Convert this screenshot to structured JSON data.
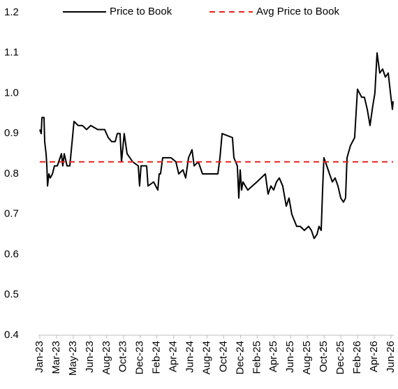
{
  "chart_data": {
    "type": "line",
    "series": [
      {
        "name": "Price to Book",
        "color": "#000000",
        "dashed": false,
        "x": [
          2023.0,
          2023.014,
          2023.021,
          2023.041,
          2023.048,
          2023.062,
          2023.069,
          2023.076,
          2023.089,
          2023.103,
          2023.124,
          2023.144,
          2023.172,
          2023.213,
          2023.226,
          2023.24,
          2023.268,
          2023.295,
          2023.336,
          2023.377,
          2023.419,
          2023.46,
          2023.501,
          2023.57,
          2023.638,
          2023.673,
          2023.707,
          2023.741,
          2023.762,
          2023.789,
          2023.803,
          2023.83,
          2023.858,
          2023.913,
          2023.968,
          2023.981,
          2023.995,
          2024.05,
          2024.064,
          2024.119,
          2024.16,
          2024.174,
          2024.187,
          2024.208,
          2024.29,
          2024.338,
          2024.366,
          2024.407,
          2024.434,
          2024.462,
          2024.496,
          2024.517,
          2024.558,
          2024.599,
          2024.668,
          2024.75,
          2024.771,
          2024.792,
          2024.894,
          2024.908,
          2024.942,
          2024.956,
          2024.97,
          2024.984,
          2024.997,
          2025.045,
          2025.134,
          2025.217,
          2025.244,
          2025.272,
          2025.299,
          2025.327,
          2025.354,
          2025.388,
          2025.423,
          2025.45,
          2025.477,
          2025.525,
          2025.56,
          2025.601,
          2025.642,
          2025.67,
          2025.697,
          2025.725,
          2025.745,
          2025.766,
          2025.78,
          2025.793,
          2025.821,
          2025.848,
          2025.876,
          2025.903,
          2025.931,
          2025.958,
          2025.985,
          2026.006,
          2026.02,
          2026.054,
          2026.095,
          2026.123,
          2026.164,
          2026.191,
          2026.219,
          2026.246,
          2026.274,
          2026.294,
          2026.315,
          2026.342,
          2026.37,
          2026.397,
          2026.425,
          2026.452,
          2026.466,
          2026.473
        ],
        "values": [
          0.91,
          0.9,
          0.94,
          0.94,
          0.88,
          0.85,
          0.82,
          0.77,
          0.8,
          0.79,
          0.8,
          0.82,
          0.82,
          0.85,
          0.82,
          0.85,
          0.82,
          0.82,
          0.93,
          0.92,
          0.92,
          0.91,
          0.92,
          0.91,
          0.91,
          0.89,
          0.88,
          0.88,
          0.9,
          0.9,
          0.83,
          0.9,
          0.85,
          0.83,
          0.82,
          0.77,
          0.82,
          0.82,
          0.77,
          0.78,
          0.76,
          0.8,
          0.8,
          0.84,
          0.84,
          0.83,
          0.8,
          0.81,
          0.79,
          0.84,
          0.86,
          0.82,
          0.83,
          0.8,
          0.8,
          0.8,
          0.84,
          0.9,
          0.89,
          0.84,
          0.82,
          0.74,
          0.81,
          0.76,
          0.78,
          0.76,
          0.78,
          0.8,
          0.75,
          0.77,
          0.76,
          0.78,
          0.79,
          0.77,
          0.72,
          0.74,
          0.7,
          0.67,
          0.67,
          0.66,
          0.67,
          0.66,
          0.64,
          0.65,
          0.67,
          0.66,
          0.76,
          0.84,
          0.82,
          0.8,
          0.78,
          0.79,
          0.77,
          0.74,
          0.73,
          0.74,
          0.84,
          0.87,
          0.89,
          1.01,
          0.99,
          0.99,
          0.96,
          0.92,
          0.97,
          1.0,
          1.1,
          1.05,
          1.06,
          1.04,
          1.05,
          0.99,
          0.96,
          0.98
        ]
      },
      {
        "name": "Avg Price to Book",
        "color": "#e8221b",
        "dashed": true,
        "x": [
          2023.0,
          2026.473
        ],
        "values": [
          0.83,
          0.83
        ]
      }
    ],
    "xlim": [
      2023.0,
      2026.48
    ],
    "xticks": [
      {
        "value": 2023.0,
        "label": "Jan-23"
      },
      {
        "value": 2023.164,
        "label": "Mar-23"
      },
      {
        "value": 2023.329,
        "label": "May-23"
      },
      {
        "value": 2023.493,
        "label": "Jun-23"
      },
      {
        "value": 2023.658,
        "label": "Aug-23"
      },
      {
        "value": 2023.822,
        "label": "Oct-23"
      },
      {
        "value": 2023.986,
        "label": "Dec-23"
      },
      {
        "value": 2024.151,
        "label": "Feb-24"
      },
      {
        "value": 2024.315,
        "label": "Apr-24"
      },
      {
        "value": 2024.479,
        "label": "Jun-24"
      },
      {
        "value": 2024.644,
        "label": "Aug-24"
      },
      {
        "value": 2024.808,
        "label": "Oct-24"
      },
      {
        "value": 2024.973,
        "label": "Dec-24"
      },
      {
        "value": 2025.137,
        "label": "Feb-25"
      },
      {
        "value": 2025.301,
        "label": "Apr-25"
      },
      {
        "value": 2025.466,
        "label": "Jun-25"
      },
      {
        "value": 2025.63,
        "label": "Aug-25"
      },
      {
        "value": 2025.795,
        "label": "Oct-25"
      },
      {
        "value": 2025.959,
        "label": "Dec-25"
      },
      {
        "value": 2026.123,
        "label": "Feb-26"
      },
      {
        "value": 2026.288,
        "label": "Apr-26"
      },
      {
        "value": 2026.452,
        "label": "Jun-26"
      }
    ],
    "ylim": [
      0.4,
      1.2
    ],
    "yticks": [
      0.4,
      0.5,
      0.6,
      0.7,
      0.8,
      0.9,
      {
        "value": 1.0,
        "label": "1.0"
      },
      1.1,
      1.2
    ],
    "legend": "top",
    "grid": false
  }
}
